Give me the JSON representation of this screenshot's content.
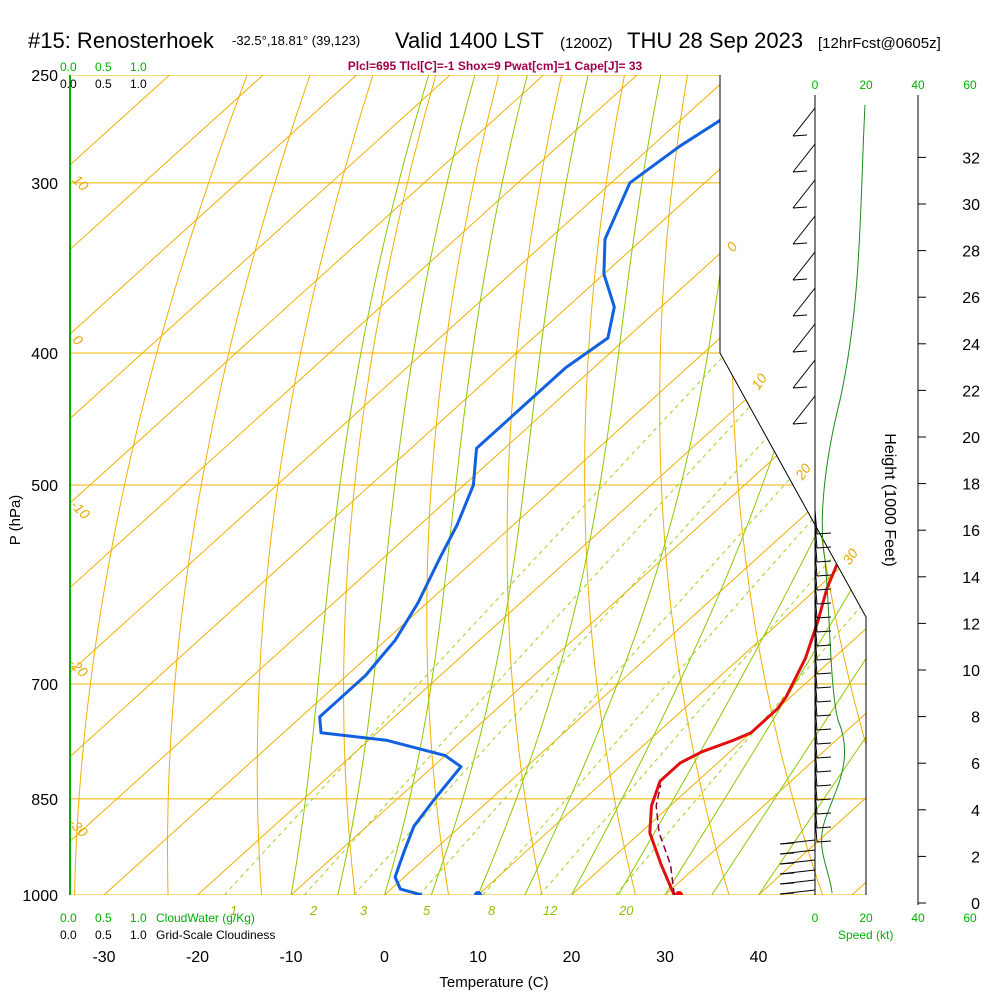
{
  "header": {
    "station": "#15: Renosterhoek",
    "coords": "-32.5°,18.81° (39,123)",
    "valid": "Valid 1400 LST",
    "zulu": "(1200Z)",
    "date": "THU 28 Sep 2023",
    "forecast": "[12hrFcst@0605z]",
    "params": "Plcl=695 Tlcl[C]=-1 Shox=9 Pwat[cm]=1 Cape[J]= 33"
  },
  "legend": {
    "cloudwater_label": "CloudWater (g/Kg)",
    "cloudiness_label": "Grid-Scale Cloudiness",
    "cloudwater_ticks": [
      "0.0",
      "0.5",
      "1.0"
    ],
    "cloudiness_ticks": [
      "0.0",
      "0.5",
      "1.0"
    ],
    "speed_label": "Speed (kt)"
  },
  "chart_data": {
    "type": "line",
    "title": "",
    "xlabel": "Temperature (C)",
    "ylabel": "P (hPa)",
    "y2label": "Height (1000 Feet)",
    "xlim": [
      -30,
      46
    ],
    "ylim": [
      1000,
      250
    ],
    "x_ticks": [
      "-30",
      "-20",
      "-10",
      "0",
      "10",
      "20",
      "30",
      "40"
    ],
    "p_ticks": [
      "250",
      "300",
      "400",
      "500",
      "700",
      "850",
      "1000"
    ],
    "height_ticks": [
      "0",
      "2",
      "4",
      "6",
      "8",
      "10",
      "12",
      "14",
      "16",
      "18",
      "20",
      "22",
      "24",
      "26",
      "28",
      "30",
      "32"
    ],
    "speed_ticks": [
      "0",
      "20",
      "40",
      "60"
    ],
    "isotherm_labels": [
      "0",
      "10",
      "20",
      "30"
    ],
    "dry_adiabat_labels": [
      "10",
      "0",
      "-10",
      "-20",
      "-30"
    ],
    "mixing_ratio_labels": [
      "1",
      "2",
      "3",
      "5",
      "8",
      "12",
      "20"
    ],
    "series": [
      {
        "name": "",
        "color": "#e01010",
        "points": [
          [
            31,
            1000
          ],
          [
            30,
            990
          ],
          [
            26,
            950
          ],
          [
            21,
            900
          ],
          [
            18,
            860
          ],
          [
            16,
            825
          ],
          [
            16,
            800
          ],
          [
            17,
            785
          ],
          [
            19,
            770
          ],
          [
            20,
            760
          ],
          [
            20,
            730
          ],
          [
            19.5,
            715
          ],
          [
            17,
            670
          ],
          [
            14,
            630
          ],
          [
            11,
            595
          ],
          [
            8,
            555
          ],
          [
            5,
            515
          ],
          [
            2,
            475
          ],
          [
            -1,
            435
          ],
          [
            -4,
            400
          ],
          [
            -7,
            365
          ],
          [
            -10,
            335
          ],
          [
            -13,
            308
          ],
          [
            -16,
            283
          ],
          [
            -19,
            263
          ]
        ]
      },
      {
        "name": "",
        "color": "#1060e0",
        "points": [
          [
            4,
            1000
          ],
          [
            1,
            990
          ],
          [
            -1,
            970
          ],
          [
            -3,
            930
          ],
          [
            -5,
            890
          ],
          [
            -6,
            850
          ],
          [
            -7,
            805
          ],
          [
            -10,
            790
          ],
          [
            -18,
            770
          ],
          [
            -26,
            760
          ],
          [
            -28,
            740
          ],
          [
            -28,
            720
          ],
          [
            -28,
            690
          ],
          [
            -29,
            650
          ],
          [
            -31,
            610
          ],
          [
            -34,
            565
          ],
          [
            -36,
            535
          ],
          [
            -39,
            500
          ],
          [
            -43,
            470
          ],
          [
            -43,
            440
          ],
          [
            -43,
            410
          ],
          [
            -42,
            390
          ],
          [
            -45,
            370
          ],
          [
            -50,
            350
          ],
          [
            -54,
            330
          ],
          [
            -58,
            300
          ],
          [
            -57,
            282
          ],
          [
            -55,
            263
          ]
        ]
      },
      {
        "name": "",
        "color": "#800040",
        "points": [
          [
            31,
            1000
          ],
          [
            27,
            950
          ],
          [
            22,
            900
          ],
          [
            18.5,
            860
          ],
          [
            16.5,
            830
          ]
        ]
      }
    ],
    "points": [
      {
        "x": 31.5,
        "y": 1000,
        "color": "#ff0000"
      },
      {
        "x": 10,
        "y": 1000,
        "color": "#1060e0"
      }
    ]
  }
}
